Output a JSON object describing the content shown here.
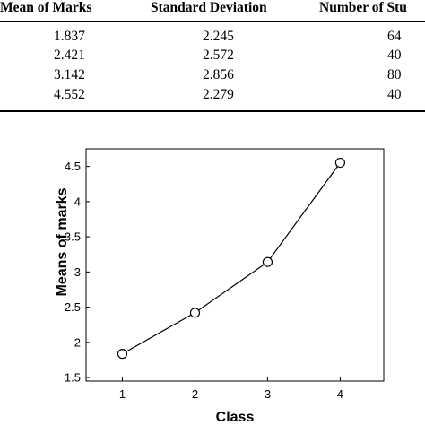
{
  "table": {
    "headers": [
      "Mean of Marks",
      "Standard Deviation",
      "Number of Stu"
    ],
    "rows": [
      [
        "1.837",
        "2.245",
        "64"
      ],
      [
        "2.421",
        "2.572",
        "40"
      ],
      [
        "3.142",
        "2.856",
        "80"
      ],
      [
        "4.552",
        "2.279",
        "40"
      ]
    ]
  },
  "chart_data": {
    "type": "line",
    "x": [
      1,
      2,
      3,
      4
    ],
    "y": [
      1.837,
      2.421,
      3.142,
      4.552
    ],
    "xlabel": "Class",
    "ylabel": "Means of marks",
    "xlim": [
      0.5,
      4.6
    ],
    "ylim": [
      1.45,
      4.75
    ],
    "xticks": [
      "1",
      "2",
      "3",
      "4"
    ],
    "yticks": [
      "1.5",
      "2",
      "2.5",
      "3",
      "3.5",
      "4",
      "4.5"
    ],
    "ytick_values": [
      1.5,
      2,
      2.5,
      3,
      3.5,
      4,
      4.5
    ],
    "marker": "circle",
    "grid": false,
    "line_color": "#000000"
  }
}
